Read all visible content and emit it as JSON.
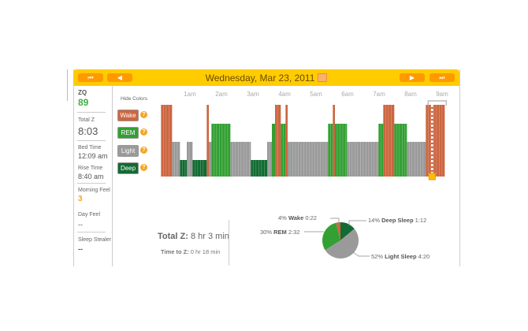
{
  "header": {
    "date": "Wednesday, Mar 23, 2011",
    "first_label": "⏮",
    "prev_label": "◀",
    "next_label": "▶",
    "last_label": "⏭"
  },
  "sidebar": {
    "zq_label": "ZQ",
    "zq_value": "89",
    "total_label": "Total Z",
    "total_value": "8:03",
    "bed_label": "Bed Time",
    "bed_value": "12:09 am",
    "rise_label": "Rise Time",
    "rise_value": "8:40 am",
    "morning_label": "Morning Feel",
    "morning_value": "3",
    "day_label": "Day Feel",
    "day_value": "--",
    "stealer_label": "Sleep Stealer",
    "stealer_value": "--"
  },
  "legend": {
    "hide_colors": "Hide Colors",
    "items": [
      {
        "label": "Wake",
        "color": "#cc6640"
      },
      {
        "label": "REM",
        "color": "#33a033"
      },
      {
        "label": "Light",
        "color": "#9a9a9a"
      },
      {
        "label": "Deep",
        "color": "#126b32"
      }
    ],
    "help": "?"
  },
  "chart_data": {
    "type": "bar",
    "x_ticks": [
      "1am",
      "2am",
      "3am",
      "4am",
      "5am",
      "6am",
      "7am",
      "8am",
      "9am"
    ],
    "x_unit": "minutes after midnight",
    "stage_levels": {
      "wake": 4,
      "rem": 3,
      "light": 2,
      "deep": 1
    },
    "marker_minute": 521,
    "segments": [
      [
        "wake",
        5,
        26
      ],
      [
        "light",
        26,
        41
      ],
      [
        "deep",
        41,
        54
      ],
      [
        "light",
        54,
        65
      ],
      [
        "deep",
        65,
        92
      ],
      [
        "wake",
        92,
        96
      ],
      [
        "light",
        96,
        101
      ],
      [
        "rem",
        101,
        137
      ],
      [
        "light",
        137,
        176
      ],
      [
        "deep",
        176,
        207
      ],
      [
        "light",
        207,
        216
      ],
      [
        "rem",
        216,
        222
      ],
      [
        "wake",
        222,
        233
      ],
      [
        "rem",
        233,
        242
      ],
      [
        "wake",
        242,
        246
      ],
      [
        "light",
        246,
        323
      ],
      [
        "rem",
        323,
        332
      ],
      [
        "wake",
        332,
        336
      ],
      [
        "rem",
        336,
        359
      ],
      [
        "light",
        359,
        419
      ],
      [
        "rem",
        419,
        428
      ],
      [
        "wake",
        428,
        449
      ],
      [
        "rem",
        449,
        473
      ],
      [
        "light",
        473,
        509
      ],
      [
        "wake",
        509,
        545
      ]
    ],
    "colors": {
      "wake": "#cc6640",
      "rem": "#33a033",
      "light": "#9a9a9a",
      "deep": "#126b32"
    }
  },
  "summary": {
    "total_label": "Total Z:",
    "total_value": "8 hr 3 min",
    "ttz_label": "Time to Z:",
    "ttz_value": "0 hr 18 min"
  },
  "pie": {
    "type": "pie",
    "slices": [
      {
        "pct": "14%",
        "name": "Deep Sleep",
        "time": "1:12",
        "value": 14,
        "color": "#126b32"
      },
      {
        "pct": "52%",
        "name": "Light Sleep",
        "time": "4:20",
        "value": 52,
        "color": "#9a9a9a"
      },
      {
        "pct": "30%",
        "name": "REM",
        "time": "2:32",
        "value": 30,
        "color": "#33a033"
      },
      {
        "pct": "4%",
        "name": "Wake",
        "time": "0:22",
        "value": 4,
        "color": "#cc6640"
      }
    ]
  }
}
